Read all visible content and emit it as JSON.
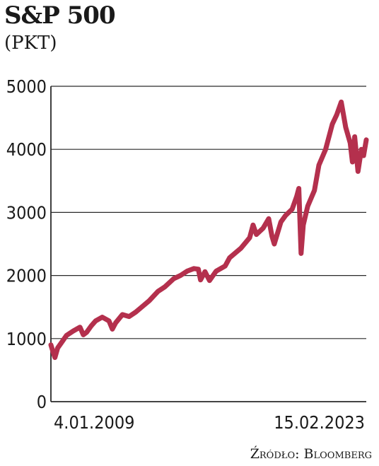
{
  "chart_data": {
    "type": "line",
    "title": "S&P 500",
    "subtitle": "(PKT)",
    "source": "Źródło: Bloomberg",
    "ylim": [
      0,
      5000
    ],
    "yticks": [
      "5000",
      "4000",
      "3000",
      "2000",
      "1000",
      "0"
    ],
    "ytick_values": [
      5000,
      4000,
      3000,
      2000,
      1000,
      0
    ],
    "xlim": [
      2009.0,
      2023.12
    ],
    "x_labels": [
      "4.01.2009",
      "15.02.2023"
    ],
    "grid": true,
    "series": [
      {
        "color": "#b4304d",
        "x": [
          2009.0,
          2009.1,
          2009.18,
          2009.3,
          2009.5,
          2009.7,
          2010.0,
          2010.3,
          2010.45,
          2010.6,
          2010.8,
          2011.0,
          2011.3,
          2011.6,
          2011.75,
          2011.9,
          2012.2,
          2012.5,
          2012.8,
          2013.0,
          2013.4,
          2013.8,
          2014.1,
          2014.5,
          2014.8,
          2015.1,
          2015.4,
          2015.6,
          2015.7,
          2015.9,
          2016.1,
          2016.4,
          2016.8,
          2017.0,
          2017.5,
          2017.9,
          2018.05,
          2018.2,
          2018.5,
          2018.75,
          2018.9,
          2019.0,
          2019.3,
          2019.5,
          2019.8,
          2020.0,
          2020.1,
          2020.2,
          2020.3,
          2020.5,
          2020.8,
          2021.0,
          2021.3,
          2021.6,
          2021.8,
          2022.0,
          2022.2,
          2022.4,
          2022.5,
          2022.6,
          2022.75,
          2022.9,
          2023.0,
          2023.12
        ],
        "values": [
          900,
          780,
          700,
          850,
          950,
          1050,
          1120,
          1180,
          1060,
          1100,
          1200,
          1280,
          1340,
          1280,
          1150,
          1250,
          1380,
          1350,
          1420,
          1480,
          1600,
          1750,
          1820,
          1950,
          2000,
          2070,
          2110,
          2100,
          1930,
          2060,
          1920,
          2070,
          2150,
          2280,
          2430,
          2600,
          2800,
          2650,
          2750,
          2900,
          2620,
          2500,
          2850,
          2950,
          3050,
          3250,
          3380,
          2350,
          2800,
          3100,
          3350,
          3750,
          4000,
          4400,
          4550,
          4750,
          4350,
          4100,
          3800,
          4200,
          3650,
          4000,
          3900,
          4150
        ]
      }
    ]
  }
}
